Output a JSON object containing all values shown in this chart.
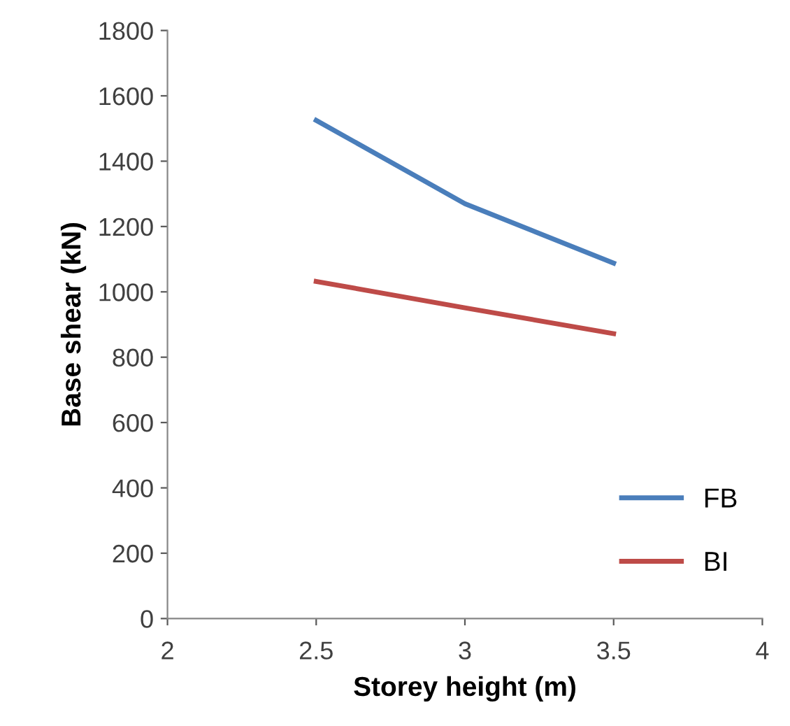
{
  "chart_data": {
    "type": "line",
    "xlabel": "Storey height (m)",
    "ylabel": "Base shear (kN)",
    "x": [
      2.5,
      3,
      3.5
    ],
    "series": [
      {
        "name": "FB",
        "color": "#4a7ebb",
        "values": [
          1525,
          1270,
          1088
        ]
      },
      {
        "name": "BI",
        "color": "#be4b48",
        "values": [
          1032,
          951,
          872
        ]
      }
    ],
    "xlim": [
      2,
      4
    ],
    "xticks": [
      2,
      2.5,
      3,
      3.5,
      4
    ],
    "ylim": [
      0,
      1800
    ],
    "yticks": [
      0,
      200,
      400,
      600,
      800,
      1000,
      1200,
      1400,
      1600,
      1800
    ],
    "grid": false,
    "legend": "bottom right",
    "marker": "none",
    "line_style": "solid"
  }
}
